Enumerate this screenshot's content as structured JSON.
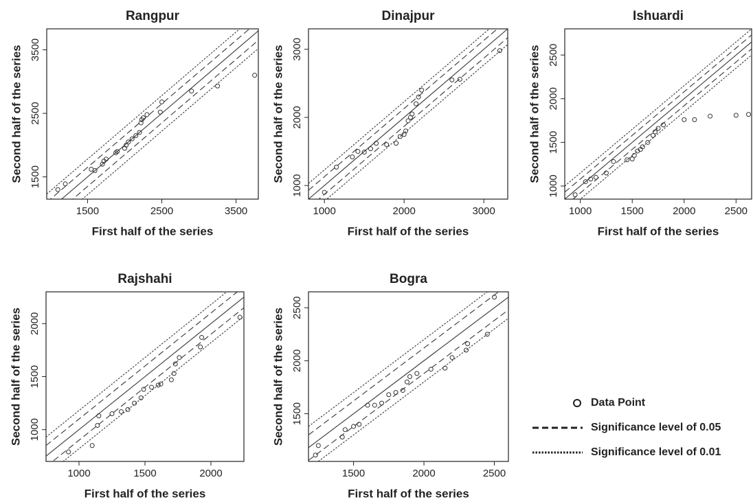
{
  "legend": [
    {
      "label": "Data Point",
      "style": "circle"
    },
    {
      "label": "Significance level of 0.05",
      "style": "dashed"
    },
    {
      "label": "Significance level of 0.01",
      "style": "dotted"
    }
  ],
  "chart_data": [
    {
      "type": "scatter",
      "title": "Rangpur",
      "xlabel": "First half of the series",
      "ylabel": "Second half of the series",
      "xlim": [
        950,
        3800
      ],
      "ylim": [
        1150,
        3830
      ],
      "xticks": [
        1500,
        2500,
        3500
      ],
      "yticks": [
        1500,
        2500,
        3500
      ],
      "x": [
        1100,
        1200,
        1550,
        1600,
        1700,
        1720,
        1750,
        1880,
        1900,
        2000,
        2020,
        2050,
        2100,
        2150,
        2200,
        2220,
        2230,
        2250,
        2300,
        2480,
        2500,
        2900,
        3250,
        3750
      ],
      "y": [
        1300,
        1390,
        1620,
        1600,
        1700,
        1750,
        1780,
        1880,
        1900,
        1950,
        2000,
        2050,
        2100,
        2150,
        2200,
        2350,
        2400,
        2430,
        2480,
        2520,
        2680,
        2850,
        2930,
        3100
      ],
      "bands": [
        {
          "style": "dashed",
          "offset": 150
        },
        {
          "style": "dotted",
          "offset": 280
        }
      ]
    },
    {
      "type": "scatter",
      "title": "Dinajpur",
      "xlabel": "First half of the series",
      "ylabel": "Second half of the series",
      "xlim": [
        800,
        3300
      ],
      "ylim": [
        800,
        3300
      ],
      "xticks": [
        1000,
        2000,
        3000
      ],
      "yticks": [
        1000,
        2000,
        3000
      ],
      "x": [
        1000,
        1150,
        1350,
        1420,
        1500,
        1580,
        1650,
        1780,
        1900,
        1950,
        2000,
        2020,
        2050,
        2080,
        2100,
        2150,
        2180,
        2220,
        2600,
        2700,
        3200
      ],
      "y": [
        900,
        1270,
        1420,
        1500,
        1490,
        1540,
        1620,
        1600,
        1620,
        1720,
        1750,
        1800,
        1950,
        2000,
        2050,
        2200,
        2300,
        2400,
        2550,
        2560,
        2980
      ],
      "bands": [
        {
          "style": "dashed",
          "offset": 130
        },
        {
          "style": "dotted",
          "offset": 230
        }
      ]
    },
    {
      "type": "scatter",
      "title": "Ishuardi",
      "xlabel": "First half of the series",
      "ylabel": "Second half of the series",
      "xlim": [
        850,
        2650
      ],
      "ylim": [
        850,
        2800
      ],
      "xticks": [
        1000,
        1500,
        2000,
        2500
      ],
      "yticks": [
        1000,
        1500,
        2000,
        2500
      ],
      "x": [
        950,
        1050,
        1100,
        1150,
        1250,
        1320,
        1450,
        1500,
        1520,
        1550,
        1580,
        1600,
        1650,
        1700,
        1720,
        1750,
        1800,
        2000,
        2100,
        2250,
        2500,
        2620
      ],
      "y": [
        900,
        1050,
        1080,
        1100,
        1150,
        1280,
        1300,
        1310,
        1350,
        1400,
        1420,
        1450,
        1500,
        1580,
        1620,
        1660,
        1700,
        1760,
        1760,
        1800,
        1810,
        1820
      ],
      "bands": [
        {
          "style": "dashed",
          "offset": 80
        },
        {
          "style": "dotted",
          "offset": 150
        }
      ]
    },
    {
      "type": "scatter",
      "title": "Rajshahi",
      "xlabel": "First half of the series",
      "ylabel": "Second half of the series",
      "xlim": [
        750,
        2250
      ],
      "ylim": [
        700,
        2300
      ],
      "xticks": [
        1000,
        1500,
        2000
      ],
      "yticks": [
        1000,
        1500,
        2000
      ],
      "x": [
        920,
        1100,
        1140,
        1150,
        1250,
        1320,
        1370,
        1420,
        1470,
        1490,
        1550,
        1600,
        1620,
        1700,
        1720,
        1730,
        1760,
        1920,
        1930,
        2220
      ],
      "y": [
        790,
        850,
        1040,
        1130,
        1150,
        1170,
        1190,
        1250,
        1300,
        1380,
        1400,
        1420,
        1430,
        1470,
        1530,
        1620,
        1680,
        1780,
        1870,
        2060
      ],
      "bands": [
        {
          "style": "dashed",
          "offset": 100
        },
        {
          "style": "dotted",
          "offset": 180
        }
      ]
    },
    {
      "type": "scatter",
      "title": "Bogra",
      "xlabel": "First half of the series",
      "ylabel": "Second half of the series",
      "xlim": [
        1180,
        2600
      ],
      "ylim": [
        1050,
        2650
      ],
      "xticks": [
        1500,
        2000,
        2500
      ],
      "yticks": [
        1500,
        2000,
        2500
      ],
      "x": [
        1230,
        1250,
        1420,
        1440,
        1500,
        1540,
        1600,
        1650,
        1700,
        1750,
        1800,
        1850,
        1880,
        1900,
        1950,
        2050,
        2150,
        2200,
        2300,
        2310,
        2450,
        2500
      ],
      "y": [
        1110,
        1200,
        1280,
        1350,
        1380,
        1400,
        1580,
        1580,
        1600,
        1680,
        1700,
        1720,
        1800,
        1850,
        1880,
        1920,
        1930,
        2030,
        2100,
        2160,
        2250,
        2600
      ],
      "bands": [
        {
          "style": "dashed",
          "offset": 120
        },
        {
          "style": "dotted",
          "offset": 200
        }
      ]
    }
  ]
}
